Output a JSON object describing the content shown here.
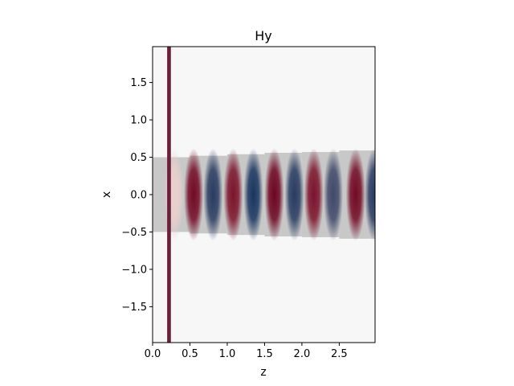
{
  "chart_data": {
    "type": "heatmap",
    "title": "Hy",
    "xlabel": "z",
    "ylabel": "x",
    "xlim": [
      0.0,
      2.98
    ],
    "ylim": [
      -1.98,
      1.98
    ],
    "x_ticks": [
      0.0,
      0.5,
      1.0,
      1.5,
      2.0,
      2.5
    ],
    "x_tick_labels": [
      "0.0",
      "0.5",
      "1.0",
      "1.5",
      "2.0",
      "2.5"
    ],
    "y_ticks": [
      1.5,
      1.0,
      0.5,
      0.0,
      -0.5,
      -1.0,
      -1.5
    ],
    "y_tick_labels": [
      "1.5",
      "1.0",
      "0.5",
      "0.0",
      "−0.5",
      "−1.0",
      "−1.5"
    ],
    "colormap": "RdBu",
    "background_color": "#f7f7f7",
    "source_line": {
      "z": 0.22,
      "width": 0.05,
      "color": "#6d1f3a"
    },
    "waveguide_segments": [
      {
        "z0": 0.0,
        "z1": 0.5,
        "half_width": 0.5
      },
      {
        "z0": 0.5,
        "z1": 1.0,
        "half_width": 0.52
      },
      {
        "z0": 1.0,
        "z1": 1.5,
        "half_width": 0.54
      },
      {
        "z0": 1.5,
        "z1": 2.0,
        "half_width": 0.56
      },
      {
        "z0": 2.0,
        "z1": 2.5,
        "half_width": 0.57
      },
      {
        "z0": 2.5,
        "z1": 2.98,
        "half_width": 0.59
      }
    ],
    "waveguide_color": "#c8c8c8",
    "field_bands": [
      {
        "z": 0.29,
        "value": 0.2
      },
      {
        "z": 0.55,
        "value": 0.9
      },
      {
        "z": 0.81,
        "value": -0.85
      },
      {
        "z": 1.08,
        "value": 0.85
      },
      {
        "z": 1.35,
        "value": -0.9
      },
      {
        "z": 1.63,
        "value": 0.95
      },
      {
        "z": 1.9,
        "value": -0.85
      },
      {
        "z": 2.16,
        "value": 0.85
      },
      {
        "z": 2.42,
        "value": -0.8
      },
      {
        "z": 2.72,
        "value": 0.9
      },
      {
        "z": 2.97,
        "value": -0.85
      }
    ]
  }
}
